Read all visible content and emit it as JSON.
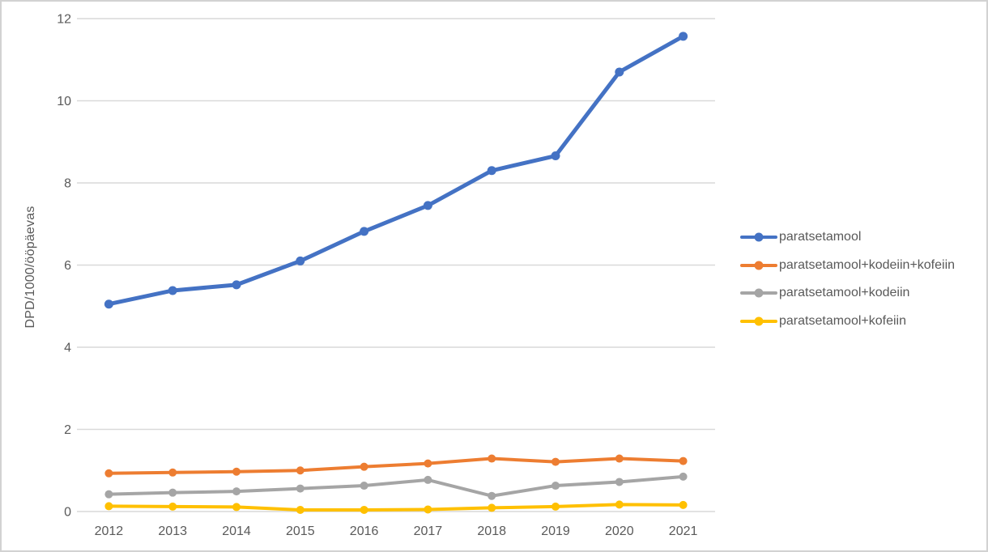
{
  "chart_data": {
    "type": "line",
    "ylabel": "DPD/1000/ööpäevas",
    "xlabel": "",
    "categories": [
      "2012",
      "2013",
      "2014",
      "2015",
      "2016",
      "2017",
      "2018",
      "2019",
      "2020",
      "2021"
    ],
    "y_ticks": [
      0,
      2,
      4,
      6,
      8,
      10,
      12
    ],
    "ylim": [
      0,
      12
    ],
    "grid": "horizontal",
    "legend_position": "right",
    "series": [
      {
        "name": "paratsetamool",
        "color": "#4472C4",
        "values": [
          5.05,
          5.38,
          5.52,
          6.1,
          6.82,
          7.45,
          8.3,
          8.66,
          10.7,
          11.57
        ]
      },
      {
        "name": "paratsetamool+kodeiin+kofeiin",
        "color": "#ED7D31",
        "values": [
          0.93,
          0.95,
          0.97,
          1.0,
          1.09,
          1.17,
          1.29,
          1.21,
          1.29,
          1.23
        ]
      },
      {
        "name": "paratsetamool+kodeiin",
        "color": "#A5A5A5",
        "values": [
          0.42,
          0.46,
          0.49,
          0.56,
          0.63,
          0.77,
          0.38,
          0.63,
          0.72,
          0.85
        ]
      },
      {
        "name": "paratsetamool+kofeiin",
        "color": "#FFC000",
        "values": [
          0.13,
          0.12,
          0.11,
          0.04,
          0.04,
          0.05,
          0.09,
          0.12,
          0.17,
          0.16
        ]
      }
    ],
    "colors": {
      "gridline": "#D9D9D9",
      "axis_text": "#595959",
      "frame_border": "#D2D2D2",
      "background": "#FFFFFF"
    }
  }
}
